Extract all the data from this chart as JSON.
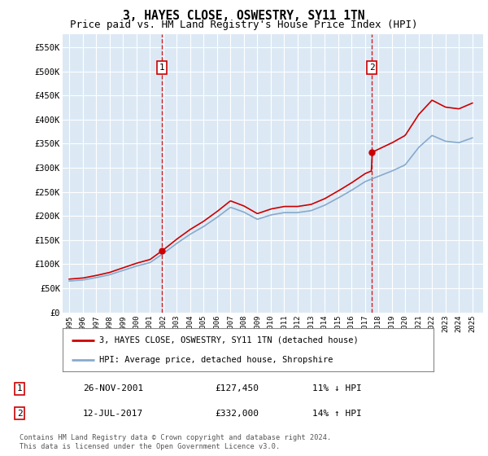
{
  "title": "3, HAYES CLOSE, OSWESTRY, SY11 1TN",
  "subtitle": "Price paid vs. HM Land Registry's House Price Index (HPI)",
  "title_fontsize": 10.5,
  "subtitle_fontsize": 9,
  "background_color": "#ffffff",
  "plot_bg_color": "#dce9f5",
  "grid_color": "#ffffff",
  "red_line_color": "#cc0000",
  "blue_line_color": "#88aacc",
  "sale1_x": 2001.9,
  "sale1_y": 127450,
  "sale2_x": 2017.53,
  "sale2_y": 332000,
  "dashed_color": "#cc0000",
  "ylim_min": 0,
  "ylim_max": 577000,
  "xlim_min": 1994.5,
  "xlim_max": 2025.8,
  "yticks": [
    0,
    50000,
    100000,
    150000,
    200000,
    250000,
    300000,
    350000,
    400000,
    450000,
    500000,
    550000
  ],
  "ytick_labels": [
    "£0",
    "£50K",
    "£100K",
    "£150K",
    "£200K",
    "£250K",
    "£300K",
    "£350K",
    "£400K",
    "£450K",
    "£500K",
    "£550K"
  ],
  "xticks": [
    1995,
    1996,
    1997,
    1998,
    1999,
    2000,
    2001,
    2002,
    2003,
    2004,
    2005,
    2006,
    2007,
    2008,
    2009,
    2010,
    2011,
    2012,
    2013,
    2014,
    2015,
    2016,
    2017,
    2018,
    2019,
    2020,
    2021,
    2022,
    2023,
    2024,
    2025
  ],
  "legend_entry1": "3, HAYES CLOSE, OSWESTRY, SY11 1TN (detached house)",
  "legend_entry2": "HPI: Average price, detached house, Shropshire",
  "annot1_label": "1",
  "annot1_date": "26-NOV-2001",
  "annot1_price": "£127,450",
  "annot1_hpi": "11% ↓ HPI",
  "annot2_label": "2",
  "annot2_date": "12-JUL-2017",
  "annot2_price": "£332,000",
  "annot2_hpi": "14% ↑ HPI",
  "footer": "Contains HM Land Registry data © Crown copyright and database right 2024.\nThis data is licensed under the Open Government Licence v3.0."
}
